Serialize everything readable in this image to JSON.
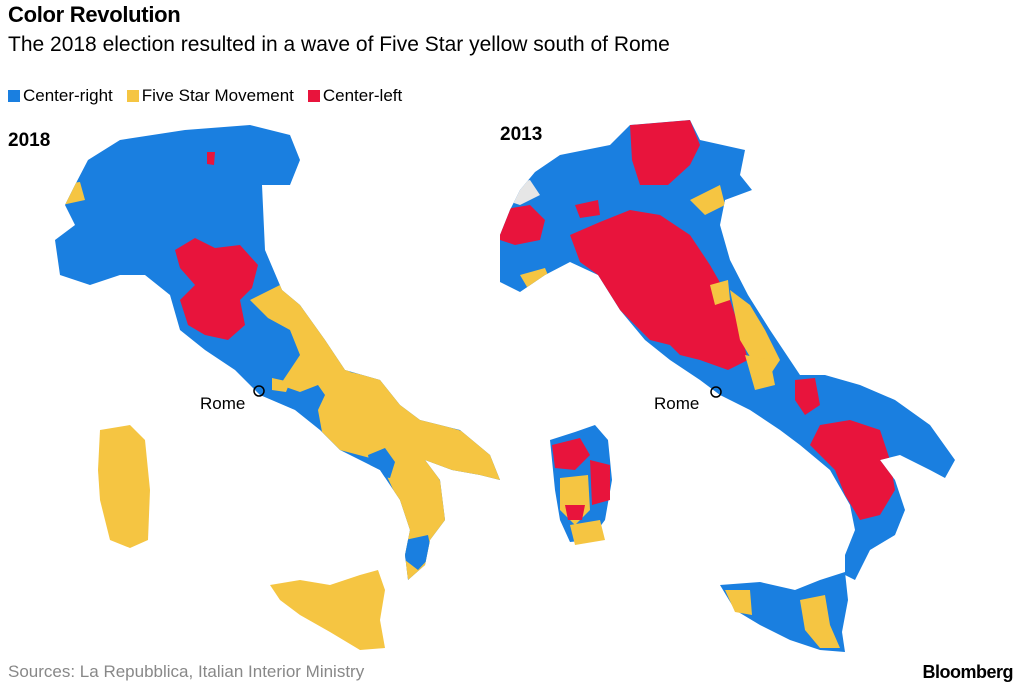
{
  "header": {
    "title": "Color Revolution",
    "subtitle": "The 2018 election resulted in a wave of Five Star yellow south of Rome"
  },
  "legend": [
    {
      "label": "Center-right",
      "color": "#1a7fe0"
    },
    {
      "label": "Five Star Movement",
      "color": "#f5c542"
    },
    {
      "label": "Center-left",
      "color": "#e8143c"
    }
  ],
  "maps": [
    {
      "year": "2018",
      "city_label": "Rome"
    },
    {
      "year": "2013",
      "city_label": "Rome"
    }
  ],
  "footer": {
    "source": "Sources: La Repubblica, Italian Interior Ministry",
    "brand": "Bloomberg"
  }
}
